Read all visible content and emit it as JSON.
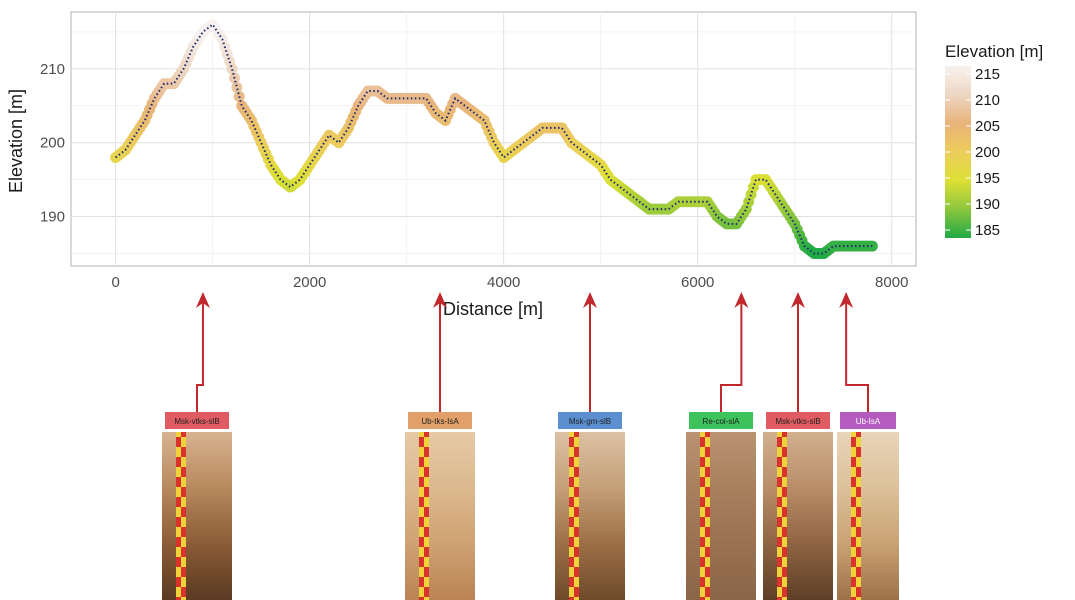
{
  "chart_data": {
    "type": "scatter",
    "title": "",
    "xlabel": "Distance [m]",
    "ylabel": "Elevation [m]",
    "xlim": [
      -460,
      8250
    ],
    "ylim": [
      183.3,
      217.7
    ],
    "x_ticks": [
      0,
      2000,
      4000,
      6000,
      8000
    ],
    "x_tick_labels": [
      "0",
      "2000",
      "4000",
      "6000",
      "8000"
    ],
    "y_ticks": [
      190,
      200,
      210
    ],
    "y_tick_labels": [
      "190",
      "200",
      "210"
    ],
    "grid": true,
    "legend": {
      "title": "Elevation [m]",
      "placement": "right",
      "labels": [
        "215",
        "210",
        "205",
        "200",
        "195",
        "190",
        "185"
      ],
      "values": [
        215,
        210,
        205,
        200,
        195,
        190,
        185
      ],
      "colormap": [
        {
          "value": 185,
          "color": "#1faa45"
        },
        {
          "value": 190,
          "color": "#8cc63e"
        },
        {
          "value": 195,
          "color": "#dde034"
        },
        {
          "value": 200,
          "color": "#eccd5b"
        },
        {
          "value": 205,
          "color": "#e8b37a"
        },
        {
          "value": 210,
          "color": "#eed6c3"
        },
        {
          "value": 215,
          "color": "#f7f2ef"
        }
      ]
    },
    "trend_color": "#1f2a6e",
    "x": [
      0,
      100,
      200,
      300,
      400,
      500,
      600,
      700,
      800,
      900,
      1000,
      1100,
      1200,
      1300,
      1400,
      1500,
      1600,
      1700,
      1800,
      1900,
      2000,
      2100,
      2200,
      2300,
      2400,
      2500,
      2600,
      2700,
      2800,
      2900,
      3000,
      3100,
      3200,
      3300,
      3400,
      3500,
      3600,
      3700,
      3800,
      3900,
      4000,
      4100,
      4200,
      4300,
      4400,
      4500,
      4600,
      4700,
      4800,
      4900,
      5000,
      5100,
      5200,
      5300,
      5400,
      5500,
      5600,
      5700,
      5800,
      5900,
      6000,
      6100,
      6200,
      6300,
      6400,
      6500,
      6600,
      6700,
      6800,
      6900,
      7000,
      7100,
      7200,
      7300,
      7400,
      7500,
      7600,
      7700,
      7800
    ],
    "y": [
      198,
      199,
      201,
      203,
      206,
      208,
      208,
      210,
      213,
      215,
      216,
      214,
      210,
      205,
      203,
      200,
      197,
      195,
      194,
      195,
      197,
      199,
      201,
      200,
      202,
      205,
      207,
      207,
      206,
      206,
      206,
      206,
      206,
      204,
      203,
      206,
      205,
      204,
      203,
      200,
      198,
      199,
      200,
      201,
      202,
      202,
      202,
      200,
      199,
      198,
      197,
      195,
      194,
      193,
      192,
      191,
      191,
      191,
      192,
      192,
      192,
      192,
      190,
      189,
      189,
      191,
      195,
      195,
      193,
      191,
      189,
      186,
      185,
      185,
      186,
      186,
      186,
      186,
      186
    ],
    "profiles": [
      {
        "label": "Msk-vtks-slB",
        "color": "#e15b63",
        "x": 900
      },
      {
        "label": "Ub-tks-IsA",
        "color": "#e1a06a",
        "x": 3350
      },
      {
        "label": "Msk-gm-slB",
        "color": "#5b8fd0",
        "x": 4930
      },
      {
        "label": "Re-col-slA",
        "color": "#3dc25c",
        "x": 6450
      },
      {
        "label": "Msk-vtks-slB",
        "color": "#e15b63",
        "x": 7000
      },
      {
        "label": "Ub-IsA",
        "color": "#b45bc0",
        "x": 7530
      }
    ]
  }
}
